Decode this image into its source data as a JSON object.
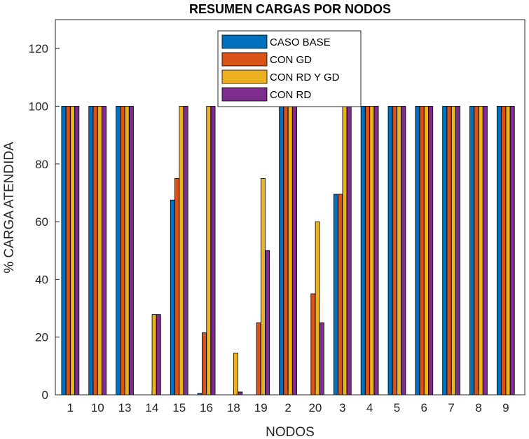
{
  "chart_data": {
    "type": "bar",
    "title": "RESUMEN CARGAS POR NODOS",
    "xlabel": "NODOS",
    "ylabel": "% CARGA ATENDIDA",
    "ylim": [
      0,
      130
    ],
    "yticks": [
      0,
      20,
      40,
      60,
      80,
      100,
      120
    ],
    "grid": false,
    "legend_position": "top-center",
    "categories": [
      "1",
      "10",
      "13",
      "14",
      "15",
      "16",
      "18",
      "19",
      "2",
      "20",
      "3",
      "4",
      "5",
      "6",
      "7",
      "8",
      "9"
    ],
    "series": [
      {
        "name": "CASO BASE",
        "color": "#0072BD",
        "values": [
          100,
          100,
          100,
          0,
          67.5,
          0.5,
          0,
          0,
          100,
          0,
          69.5,
          100,
          100,
          100,
          100,
          100,
          100
        ]
      },
      {
        "name": "CON GD",
        "color": "#D95319",
        "values": [
          100,
          100,
          100,
          0,
          75,
          21.5,
          0,
          25,
          100,
          35,
          69.5,
          100,
          100,
          100,
          100,
          100,
          100
        ]
      },
      {
        "name": "CON RD Y GD",
        "color": "#EDB120",
        "values": [
          100,
          100,
          100,
          27.8,
          100,
          100,
          14.5,
          75,
          100,
          60,
          100,
          100,
          100,
          100,
          100,
          100,
          100
        ]
      },
      {
        "name": "CON RD",
        "color": "#7E2F8E",
        "values": [
          100,
          100,
          100,
          27.8,
          100,
          100,
          1,
          50,
          100,
          25,
          100,
          100,
          100,
          100,
          100,
          100,
          100
        ]
      }
    ]
  }
}
